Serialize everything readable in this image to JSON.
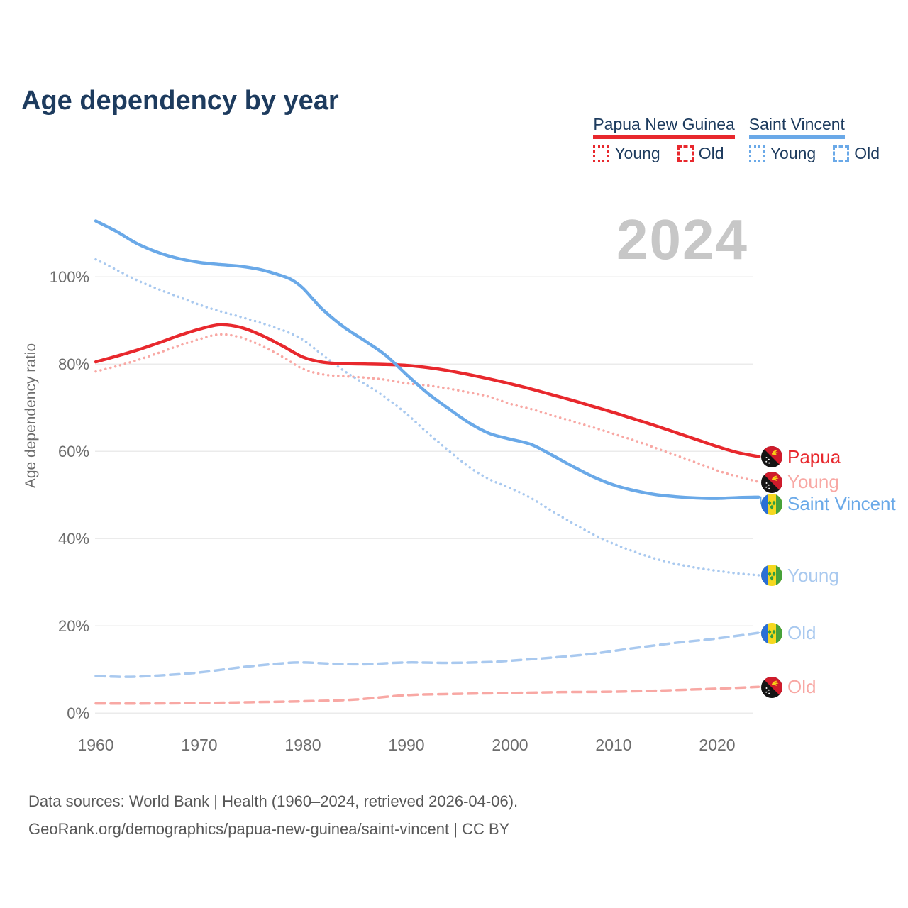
{
  "title": "Age dependency by year",
  "watermark": "2024",
  "palette": {
    "png_strong": "#e8282d",
    "png_light": "#f8a8a4",
    "sv_strong": "#6aa9e8",
    "sv_light": "#a9c9ef",
    "navy": "#1d3b5e",
    "axis_gray": "#6d6d6d",
    "watermark_gray": "#c7c7c7",
    "grid_gray": "#ebebeb",
    "footer_gray": "#585858"
  },
  "legend": {
    "groups": [
      {
        "name": "Papua New Guinea",
        "color": "#e8282d",
        "items": [
          {
            "label": "Young",
            "style": "dotted"
          },
          {
            "label": "Old",
            "style": "dashed"
          }
        ]
      },
      {
        "name": "Saint Vincent",
        "color": "#6aa9e8",
        "items": [
          {
            "label": "Young",
            "style": "dotted"
          },
          {
            "label": "Old",
            "style": "dashed"
          }
        ]
      }
    ]
  },
  "chart_data": {
    "type": "line",
    "title": "Age dependency by year",
    "xlabel": "",
    "ylabel": "Age dependency ratio",
    "xlim": [
      1960,
      2024
    ],
    "ylim": [
      0,
      115
    ],
    "grid": "horizontal",
    "yticks": [
      {
        "value": 0,
        "label": "0%"
      },
      {
        "value": 20,
        "label": "20%"
      },
      {
        "value": 40,
        "label": "40%"
      },
      {
        "value": 60,
        "label": "60%"
      },
      {
        "value": 80,
        "label": "80%"
      },
      {
        "value": 100,
        "label": "100%"
      }
    ],
    "xticks": [
      {
        "value": 1960,
        "label": "1960"
      },
      {
        "value": 1970,
        "label": "1970"
      },
      {
        "value": 1980,
        "label": "1980"
      },
      {
        "value": 1990,
        "label": "1990"
      },
      {
        "value": 2000,
        "label": "2000"
      },
      {
        "value": 2010,
        "label": "2010"
      },
      {
        "value": 2020,
        "label": "2020"
      }
    ],
    "series": [
      {
        "name": "Papua New Guinea total",
        "end_label": "Papua",
        "flag": "papua-new-guinea",
        "color": "#e8282d",
        "label_color": "#e8282d",
        "line_style": "solid",
        "x": [
          1960,
          1962,
          1964,
          1966,
          1968,
          1970,
          1972,
          1974,
          1976,
          1978,
          1980,
          1982,
          1984,
          1986,
          1988,
          1990,
          1992,
          1994,
          1996,
          1998,
          2000,
          2002,
          2004,
          2006,
          2008,
          2010,
          2012,
          2014,
          2016,
          2018,
          2020,
          2022,
          2024
        ],
        "values": [
          80.5,
          81.8,
          83.2,
          84.8,
          86.5,
          88.0,
          89.0,
          88.4,
          86.6,
          84.2,
          81.6,
          80.4,
          80.1,
          80.0,
          79.9,
          79.7,
          79.2,
          78.5,
          77.6,
          76.6,
          75.5,
          74.3,
          73.0,
          71.7,
          70.3,
          68.9,
          67.4,
          65.9,
          64.3,
          62.7,
          61.1,
          59.7,
          58.8
        ]
      },
      {
        "name": "Papua New Guinea young",
        "end_label": "Young",
        "flag": "papua-new-guinea",
        "color": "#f8a8a4",
        "label_color": "#f8a8a4",
        "line_style": "dotted",
        "x": [
          1960,
          1962,
          1964,
          1966,
          1968,
          1970,
          1972,
          1974,
          1976,
          1978,
          1980,
          1982,
          1984,
          1986,
          1988,
          1990,
          1992,
          1994,
          1996,
          1998,
          2000,
          2002,
          2004,
          2006,
          2008,
          2010,
          2012,
          2014,
          2016,
          2018,
          2020,
          2022,
          2024
        ],
        "values": [
          78.3,
          79.5,
          80.9,
          82.5,
          84.2,
          85.7,
          86.8,
          86.1,
          84.2,
          81.7,
          78.9,
          77.6,
          77.2,
          76.9,
          76.4,
          75.6,
          75.1,
          74.4,
          73.5,
          72.5,
          70.9,
          69.7,
          68.3,
          66.9,
          65.5,
          64.0,
          62.5,
          60.8,
          59.1,
          57.4,
          55.6,
          54.2,
          53.0
        ]
      },
      {
        "name": "Saint Vincent total",
        "end_label": "Saint Vincent",
        "flag": "saint-vincent",
        "color": "#6aa9e8",
        "label_color": "#6aa9e8",
        "line_style": "solid",
        "x": [
          1960,
          1962,
          1964,
          1966,
          1968,
          1970,
          1972,
          1974,
          1976,
          1978,
          1979,
          1980,
          1981,
          1982,
          1984,
          1986,
          1988,
          1990,
          1992,
          1994,
          1996,
          1998,
          2000,
          2002,
          2004,
          2006,
          2008,
          2010,
          2012,
          2014,
          2016,
          2018,
          2020,
          2022,
          2024
        ],
        "values": [
          112.8,
          110.4,
          107.6,
          105.6,
          104.2,
          103.3,
          102.8,
          102.4,
          101.6,
          100.2,
          99.2,
          97.4,
          94.8,
          92.3,
          88.4,
          85.3,
          82.0,
          77.6,
          73.4,
          69.9,
          66.6,
          64.1,
          62.8,
          61.6,
          59.2,
          56.6,
          54.2,
          52.3,
          51.0,
          50.1,
          49.6,
          49.3,
          49.2,
          49.4,
          49.5
        ]
      },
      {
        "name": "Saint Vincent young",
        "end_label": "Young",
        "flag": "saint-vincent",
        "color": "#a9c9ef",
        "label_color": "#a9c9ef",
        "line_style": "dotted",
        "x": [
          1960,
          1962,
          1964,
          1966,
          1968,
          1970,
          1972,
          1974,
          1976,
          1978,
          1979,
          1980,
          1981,
          1982,
          1984,
          1986,
          1988,
          1990,
          1992,
          1994,
          1996,
          1998,
          2000,
          2002,
          2004,
          2006,
          2008,
          2010,
          2012,
          2014,
          2016,
          2018,
          2020,
          2022,
          2024
        ],
        "values": [
          104.0,
          101.6,
          99.2,
          97.2,
          95.4,
          93.6,
          92.1,
          90.8,
          89.4,
          87.8,
          86.8,
          85.6,
          83.8,
          81.9,
          78.4,
          75.4,
          72.3,
          68.6,
          64.3,
          60.3,
          56.5,
          53.6,
          51.6,
          49.3,
          46.4,
          43.6,
          41.0,
          38.8,
          37.0,
          35.4,
          34.2,
          33.3,
          32.6,
          32.0,
          31.6
        ]
      },
      {
        "name": "Saint Vincent old",
        "end_label": "Old",
        "flag": "saint-vincent",
        "color": "#a9c9ef",
        "label_color": "#a9c9ef",
        "line_style": "dashed",
        "x": [
          1960,
          1963,
          1966,
          1970,
          1974,
          1978,
          1980,
          1983,
          1986,
          1990,
          1994,
          1998,
          2000,
          2004,
          2008,
          2012,
          2016,
          2020,
          2024
        ],
        "values": [
          8.5,
          8.3,
          8.6,
          9.3,
          10.5,
          11.4,
          11.6,
          11.3,
          11.2,
          11.6,
          11.5,
          11.7,
          12.0,
          12.7,
          13.6,
          14.9,
          16.1,
          17.1,
          18.4
        ]
      },
      {
        "name": "Papua New Guinea old",
        "end_label": "Old",
        "flag": "papua-new-guinea",
        "color": "#f8a8a4",
        "label_color": "#f8a8a4",
        "line_style": "dashed",
        "x": [
          1960,
          1965,
          1970,
          1975,
          1980,
          1985,
          1990,
          1995,
          2000,
          2005,
          2010,
          2015,
          2020,
          2024
        ],
        "values": [
          2.2,
          2.2,
          2.3,
          2.5,
          2.7,
          3.1,
          4.1,
          4.4,
          4.6,
          4.8,
          4.9,
          5.2,
          5.6,
          6.0
        ]
      }
    ]
  },
  "footer": {
    "line1": "Data sources: World Bank | Health (1960–2024, retrieved 2026-04-06).",
    "line2": "GeoRank.org/demographics/papua-new-guinea/saint-vincent | CC BY"
  }
}
